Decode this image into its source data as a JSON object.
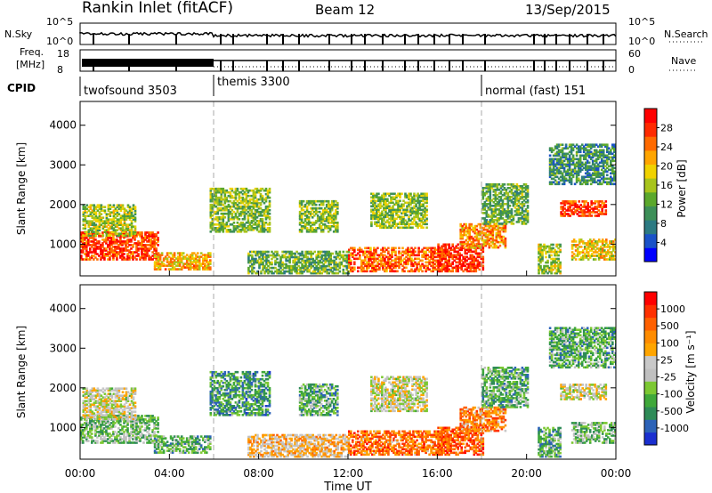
{
  "header": {
    "station": "Rankin Inlet (fitACF)",
    "beam": "Beam 12",
    "date": "13/Sep/2015"
  },
  "summary_panel": {
    "nsky_label": "N.Sky",
    "nsky_ticks": [
      "10^5",
      "10^0"
    ],
    "nsearch_label": "N.Search",
    "nsearch_ticks": [
      "10^5",
      "10^0"
    ],
    "freq_label_1": "Freq.",
    "freq_label_2": "[MHz]",
    "freq_ticks": [
      "18",
      "8"
    ],
    "nave_label": "Nave",
    "nave_ticks": [
      "60",
      "0"
    ],
    "cpid_label": "CPID",
    "modes": [
      {
        "name": "twofsound 3503",
        "start_hour": 0
      },
      {
        "name": "themis 3300",
        "start_hour": 6
      },
      {
        "name": "normal (fast) 151",
        "start_hour": 18
      }
    ]
  },
  "chart_data": [
    {
      "type": "heatmap",
      "name": "power",
      "ylabel": "Slant Range [km]",
      "xlabel": "Time UT",
      "xlim": [
        0,
        24
      ],
      "ylim": [
        200,
        4600
      ],
      "x_tick_labels": [
        "00:00",
        "04:00",
        "08:00",
        "12:00",
        "16:00",
        "20:00",
        "00:00"
      ],
      "y_tick_labels": [
        "1000",
        "2000",
        "3000",
        "4000"
      ],
      "colorbar": {
        "label": "Power [dB]",
        "tick_labels": [
          "4",
          "8",
          "12",
          "16",
          "20",
          "24",
          "28"
        ],
        "colors": [
          "#0000ff",
          "#1a52c8",
          "#2c7a82",
          "#3d8f58",
          "#5ba82c",
          "#a8c41c",
          "#f0d200",
          "#ffa500",
          "#ff6a00",
          "#ff2a00",
          "#ff0000"
        ]
      },
      "regions": [
        {
          "t": [
            0.0,
            3.5
          ],
          "r": [
            600,
            1300
          ],
          "level": 0.85
        },
        {
          "t": [
            0.1,
            2.5
          ],
          "r": [
            1200,
            2000
          ],
          "level": 0.5
        },
        {
          "t": [
            3.3,
            5.8
          ],
          "r": [
            350,
            800
          ],
          "level": 0.65
        },
        {
          "t": [
            5.8,
            8.5
          ],
          "r": [
            1300,
            2400
          ],
          "level": 0.45
        },
        {
          "t": [
            7.5,
            12.0
          ],
          "r": [
            250,
            800
          ],
          "level": 0.4
        },
        {
          "t": [
            9.8,
            11.5
          ],
          "r": [
            1300,
            2100
          ],
          "level": 0.45
        },
        {
          "t": [
            12.0,
            16.5
          ],
          "r": [
            300,
            900
          ],
          "level": 0.8
        },
        {
          "t": [
            13.0,
            15.5
          ],
          "r": [
            1400,
            2300
          ],
          "level": 0.45
        },
        {
          "t": [
            16.0,
            18.0
          ],
          "r": [
            300,
            1000
          ],
          "level": 0.9
        },
        {
          "t": [
            17.0,
            19.0
          ],
          "r": [
            900,
            1500
          ],
          "level": 0.7
        },
        {
          "t": [
            18.0,
            20.0
          ],
          "r": [
            1500,
            2500
          ],
          "level": 0.4
        },
        {
          "t": [
            20.5,
            21.5
          ],
          "r": [
            250,
            1000
          ],
          "level": 0.5
        },
        {
          "t": [
            21.5,
            23.5
          ],
          "r": [
            1700,
            2100
          ],
          "level": 0.85
        },
        {
          "t": [
            22.0,
            24.0
          ],
          "r": [
            600,
            1100
          ],
          "level": 0.6
        },
        {
          "t": [
            21.0,
            24.0
          ],
          "r": [
            2500,
            3500
          ],
          "level": 0.3
        }
      ]
    },
    {
      "type": "heatmap",
      "name": "velocity",
      "ylabel": "Slant Range [km]",
      "xlabel": "Time UT",
      "xlim": [
        0,
        24
      ],
      "ylim": [
        200,
        4600
      ],
      "x_tick_labels": [
        "00:00",
        "04:00",
        "08:00",
        "12:00",
        "16:00",
        "20:00",
        "00:00"
      ],
      "y_tick_labels": [
        "1000",
        "2000",
        "3000",
        "4000"
      ],
      "colorbar": {
        "label": "Velocity [m s⁻¹]",
        "tick_labels": [
          "1000",
          "500",
          "100",
          "25",
          "-25",
          "-100",
          "-500",
          "-1000"
        ],
        "colors": [
          "#1a2fd0",
          "#2c63b8",
          "#2e8b57",
          "#3fa83a",
          "#7cc832",
          "#c0c0c0",
          "#c8c8c8",
          "#ffa500",
          "#ff8c00",
          "#ff6000",
          "#ff3000",
          "#ff0000"
        ]
      },
      "regions": [
        {
          "t": [
            0.0,
            3.5
          ],
          "r": [
            600,
            1300
          ],
          "level": 0.35
        },
        {
          "t": [
            0.1,
            2.5
          ],
          "r": [
            1200,
            2000
          ],
          "level": 0.5
        },
        {
          "t": [
            3.3,
            5.8
          ],
          "r": [
            350,
            800
          ],
          "level": 0.3
        },
        {
          "t": [
            5.8,
            8.5
          ],
          "r": [
            1300,
            2400
          ],
          "level": 0.25
        },
        {
          "t": [
            7.5,
            12.0
          ],
          "r": [
            250,
            800
          ],
          "level": 0.6
        },
        {
          "t": [
            9.8,
            11.5
          ],
          "r": [
            1300,
            2100
          ],
          "level": 0.3
        },
        {
          "t": [
            12.0,
            16.5
          ],
          "r": [
            300,
            900
          ],
          "level": 0.75
        },
        {
          "t": [
            13.0,
            15.5
          ],
          "r": [
            1400,
            2300
          ],
          "level": 0.5
        },
        {
          "t": [
            16.0,
            18.0
          ],
          "r": [
            300,
            1000
          ],
          "level": 0.8
        },
        {
          "t": [
            17.0,
            19.0
          ],
          "r": [
            900,
            1500
          ],
          "level": 0.72
        },
        {
          "t": [
            18.0,
            20.0
          ],
          "r": [
            1500,
            2500
          ],
          "level": 0.3
        },
        {
          "t": [
            20.5,
            21.5
          ],
          "r": [
            250,
            1000
          ],
          "level": 0.3
        },
        {
          "t": [
            21.5,
            23.5
          ],
          "r": [
            1700,
            2100
          ],
          "level": 0.5
        },
        {
          "t": [
            22.0,
            24.0
          ],
          "r": [
            600,
            1100
          ],
          "level": 0.35
        },
        {
          "t": [
            21.0,
            24.0
          ],
          "r": [
            2500,
            3500
          ],
          "level": 0.3
        }
      ]
    }
  ]
}
